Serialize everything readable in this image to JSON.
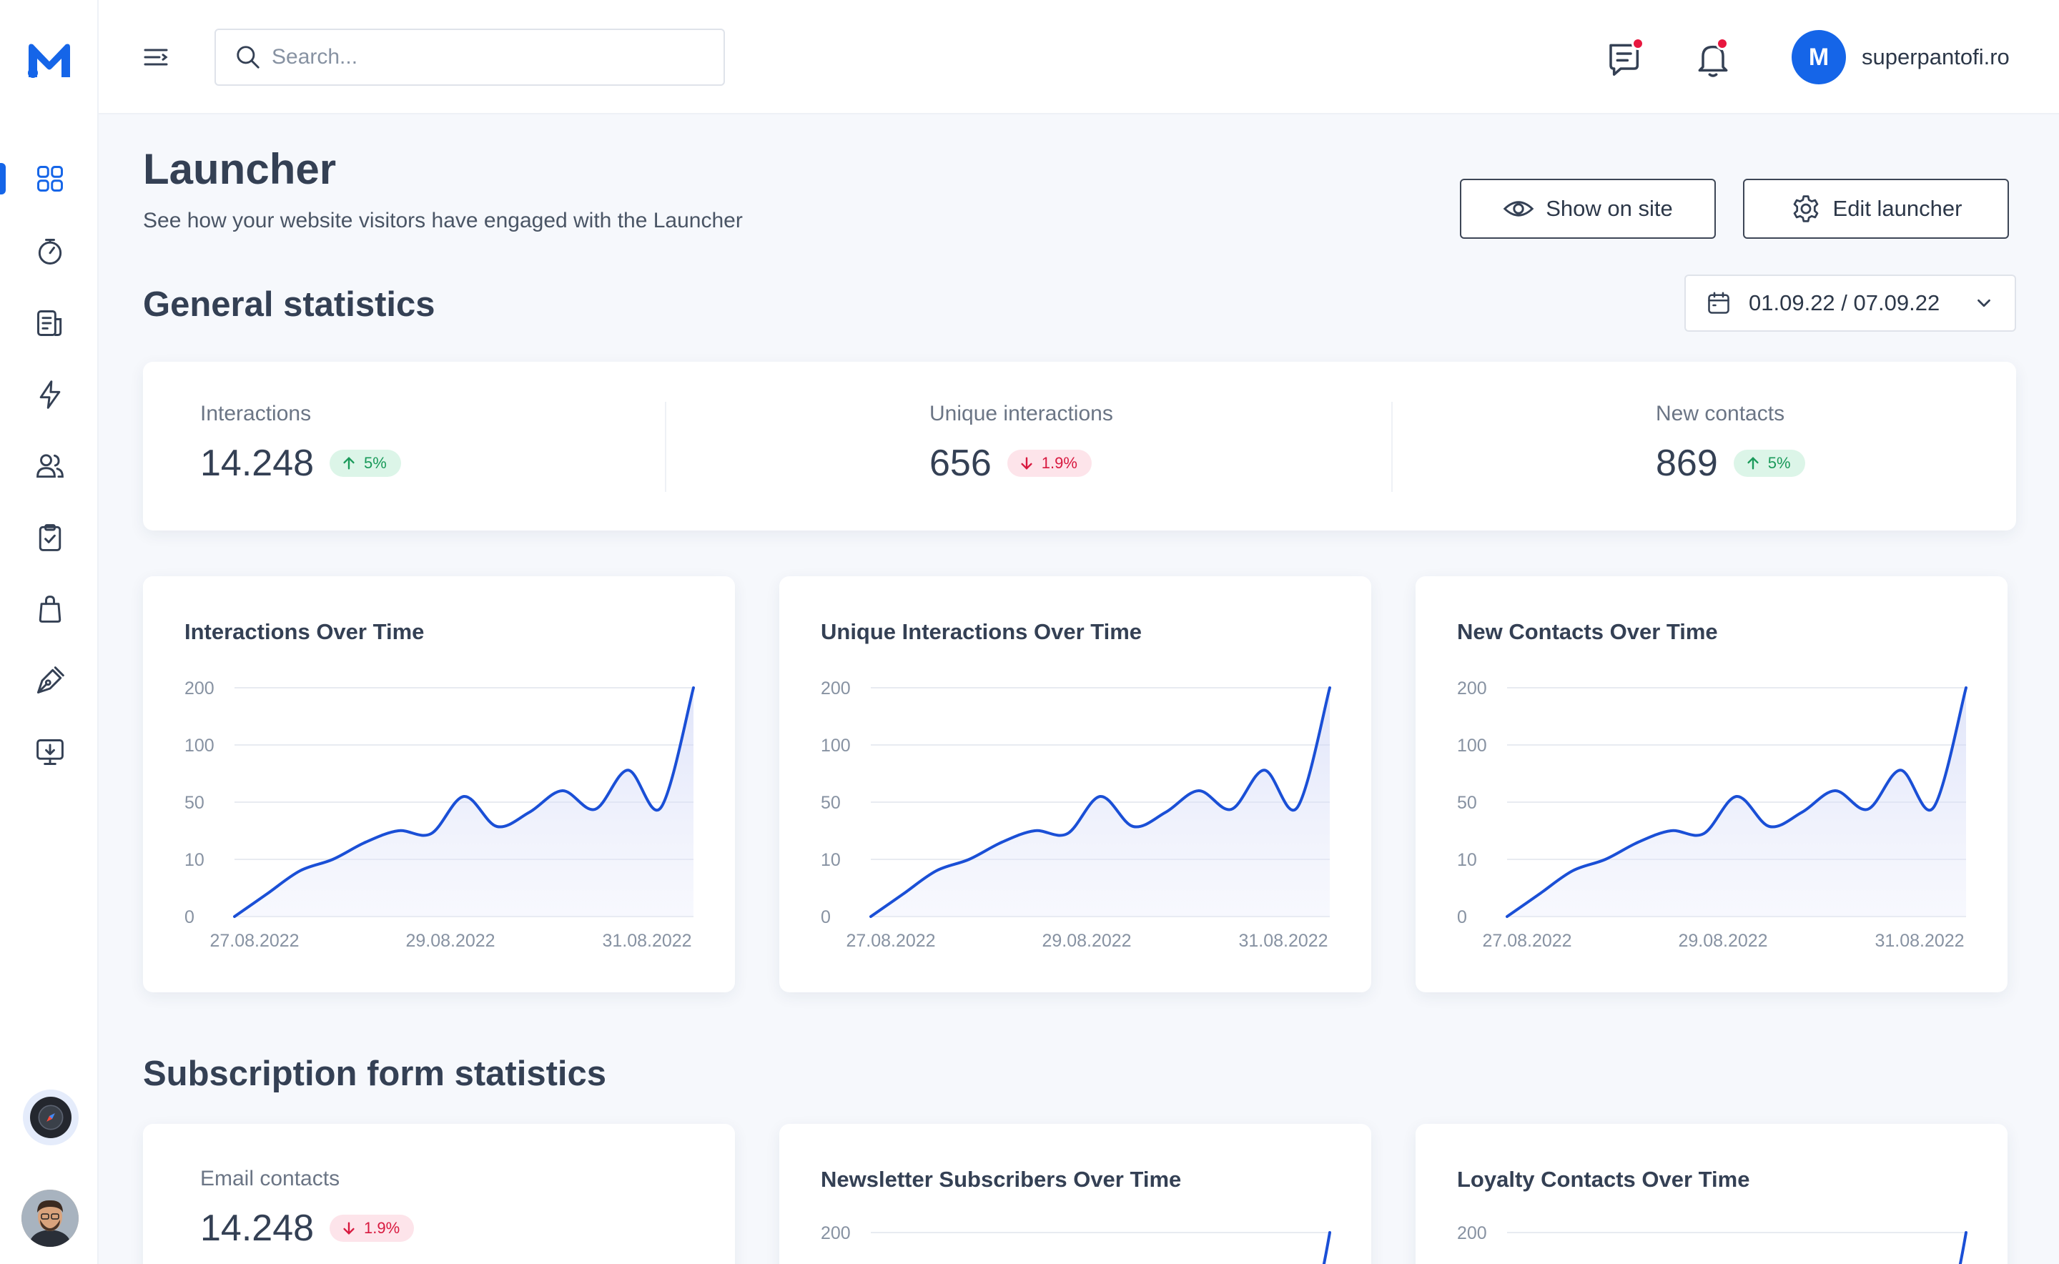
{
  "app": {
    "logo_letter": "M"
  },
  "search": {
    "placeholder": "Search..."
  },
  "account": {
    "avatar_letter": "M",
    "name": "superpantofi.ro"
  },
  "header": {
    "title": "Launcher",
    "subtitle": "See how your website visitors have engaged with the Launcher",
    "show_on_site": "Show on site",
    "edit_launcher": "Edit launcher"
  },
  "sidebar": {
    "items": [
      {
        "icon": "dashboard-grid-icon",
        "active": true
      },
      {
        "icon": "speedometer-icon"
      },
      {
        "icon": "report-icon"
      },
      {
        "icon": "lightning-icon"
      },
      {
        "icon": "users-icon"
      },
      {
        "icon": "clipboard-check-icon"
      },
      {
        "icon": "shopping-bag-icon"
      },
      {
        "icon": "pen-tool-icon"
      },
      {
        "icon": "monitor-download-icon"
      }
    ]
  },
  "general": {
    "title": "General statistics",
    "date_range": "01.09.22 / 07.09.22",
    "stats": [
      {
        "label": "Interactions",
        "value": "14.248",
        "change": "5%",
        "direction": "up"
      },
      {
        "label": "Unique interactions",
        "value": "656",
        "change": "1.9%",
        "direction": "down"
      },
      {
        "label": "New contacts",
        "value": "869",
        "change": "5%",
        "direction": "up"
      }
    ]
  },
  "subscription": {
    "title": "Subscription form statistics",
    "email": {
      "label": "Email contacts",
      "value": "14.248",
      "change": "1.9%",
      "direction": "down"
    }
  },
  "colors": {
    "accent": "#1565e8",
    "positive": "#1a9a5a",
    "negative": "#d8193f"
  },
  "chart_data": [
    {
      "type": "line",
      "title": "Interactions  Over Time",
      "y_ticks": [
        "200",
        "100",
        "50",
        "10",
        "0"
      ],
      "x_ticks": [
        "27.08.2022",
        "29.08.2022",
        "31.08.2022"
      ],
      "y_scale": "categorical-ticks",
      "x": [
        0,
        0.5,
        1,
        1.5,
        2,
        2.5,
        3,
        3.5,
        4,
        4.5,
        5,
        5.5,
        6,
        6.5,
        7
      ],
      "y": [
        0,
        4,
        8,
        10,
        22,
        30,
        28,
        55,
        33,
        43,
        60,
        45,
        78,
        46,
        200
      ]
    },
    {
      "type": "line",
      "title": "Unique Interactions  Over Time",
      "y_ticks": [
        "200",
        "100",
        "50",
        "10",
        "0"
      ],
      "x_ticks": [
        "27.08.2022",
        "29.08.2022",
        "31.08.2022"
      ],
      "y_scale": "categorical-ticks",
      "x": [
        0,
        0.5,
        1,
        1.5,
        2,
        2.5,
        3,
        3.5,
        4,
        4.5,
        5,
        5.5,
        6,
        6.5,
        7
      ],
      "y": [
        0,
        4,
        8,
        10,
        22,
        30,
        28,
        55,
        33,
        43,
        60,
        45,
        78,
        46,
        200
      ]
    },
    {
      "type": "line",
      "title": "New Contacts Over Time",
      "y_ticks": [
        "200",
        "100",
        "50",
        "10",
        "0"
      ],
      "x_ticks": [
        "27.08.2022",
        "29.08.2022",
        "31.08.2022"
      ],
      "y_scale": "categorical-ticks",
      "x": [
        0,
        0.5,
        1,
        1.5,
        2,
        2.5,
        3,
        3.5,
        4,
        4.5,
        5,
        5.5,
        6,
        6.5,
        7
      ],
      "y": [
        0,
        4,
        8,
        10,
        22,
        30,
        28,
        55,
        33,
        43,
        60,
        45,
        78,
        46,
        200
      ]
    },
    {
      "type": "line",
      "title": "Newsletter Subscribers  Over Time",
      "y_ticks": [
        "200"
      ]
    },
    {
      "type": "line",
      "title": "Loyalty Contacts Over Time",
      "y_ticks": [
        "200"
      ]
    }
  ]
}
